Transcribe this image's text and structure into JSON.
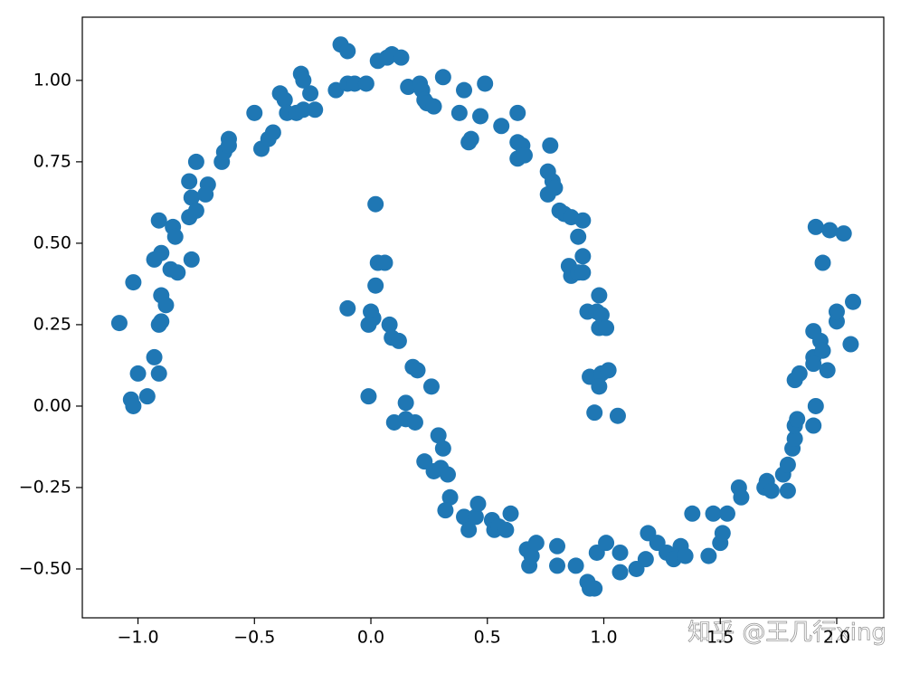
{
  "chart_data": {
    "type": "scatter",
    "color": "#1f77b4",
    "watermark": "知乎 @王几行xing",
    "xlim": [
      -1.239,
      2.202
    ],
    "ylim": [
      -0.65,
      1.194
    ],
    "xticks": [
      {
        "value": -1,
        "label": "−1.0"
      },
      {
        "value": -0.5,
        "label": "−0.5"
      },
      {
        "value": 0,
        "label": "0.0"
      },
      0.5,
      {
        "value": 1,
        "label": "1.0"
      },
      1.5,
      {
        "value": 2,
        "label": "2.0"
      }
    ],
    "yticks": [
      {
        "value": -0.5,
        "label": "−0.50"
      },
      {
        "value": -0.25,
        "label": "−0.25"
      },
      {
        "value": 0,
        "label": "0.00"
      },
      {
        "value": 0.25,
        "label": "0.25"
      },
      {
        "value": 0.5,
        "label": "0.50"
      },
      {
        "value": 0.75,
        "label": "0.75"
      },
      {
        "value": 1,
        "label": "1.00"
      }
    ],
    "x": [
      -1.08,
      -1.02,
      -1.0,
      -1.03,
      -1.02,
      -0.96,
      -0.93,
      -0.91,
      -0.91,
      -0.9,
      -0.9,
      -0.88,
      -0.93,
      -0.9,
      -0.91,
      -0.86,
      -0.83,
      -0.85,
      -0.84,
      -0.77,
      -0.78,
      -0.78,
      -0.77,
      -0.75,
      -0.75,
      -0.7,
      -0.71,
      -0.64,
      -0.63,
      -0.61,
      -0.61,
      -0.5,
      -0.47,
      -0.44,
      -0.42,
      -0.39,
      -0.37,
      -0.36,
      -0.3,
      -0.29,
      -0.32,
      -0.29,
      -0.24,
      -0.26,
      -0.15,
      -0.13,
      -0.1,
      -0.1,
      -0.07,
      -0.02,
      0.03,
      0.07,
      0.09,
      0.13,
      0.16,
      0.21,
      0.22,
      0.23,
      0.24,
      0.27,
      0.31,
      0.38,
      0.4,
      0.42,
      0.43,
      0.47,
      0.49,
      0.56,
      0.63,
      0.63,
      0.65,
      0.63,
      0.66,
      0.77,
      0.76,
      0.78,
      0.76,
      0.79,
      0.81,
      0.83,
      0.86,
      0.91,
      0.89,
      0.91,
      0.85,
      0.86,
      0.89,
      0.91,
      0.93,
      0.98,
      0.97,
      0.99,
      0.98,
      1.01,
      0.94,
      0.99,
      1.02,
      0.98,
      0.96,
      1.06,
      -0.1,
      -0.01,
      0.02,
      0.0,
      0.01,
      -0.01,
      0.03,
      0.02,
      0.06,
      0.08,
      0.09,
      0.12,
      0.1,
      0.15,
      0.15,
      0.19,
      0.18,
      0.2,
      0.26,
      0.23,
      0.27,
      0.3,
      0.29,
      0.31,
      0.33,
      0.34,
      0.32,
      0.4,
      0.42,
      0.45,
      0.46,
      0.52,
      0.53,
      0.55,
      0.58,
      0.6,
      0.67,
      0.68,
      0.69,
      0.71,
      0.8,
      0.8,
      0.88,
      0.93,
      0.94,
      0.96,
      0.97,
      1.01,
      1.07,
      1.07,
      1.14,
      1.19,
      1.18,
      1.23,
      1.27,
      1.3,
      1.33,
      1.35,
      1.38,
      1.45,
      1.47,
      1.5,
      1.51,
      1.53,
      1.58,
      1.59,
      1.69,
      1.7,
      1.72,
      1.77,
      1.79,
      1.79,
      1.81,
      1.82,
      1.82,
      1.83,
      1.82,
      1.84,
      1.9,
      1.91,
      1.9,
      1.9,
      1.93,
      1.94,
      1.9,
      1.96,
      2.0,
      2.0,
      2.06,
      2.07,
      1.91,
      1.97,
      2.03,
      1.94
    ],
    "y": [
      0.255,
      0.38,
      0.1,
      0.02,
      0.0,
      0.03,
      0.15,
      0.1,
      0.25,
      0.26,
      0.34,
      0.31,
      0.45,
      0.47,
      0.57,
      0.42,
      0.41,
      0.55,
      0.52,
      0.45,
      0.58,
      0.69,
      0.64,
      0.75,
      0.6,
      0.68,
      0.65,
      0.75,
      0.78,
      0.82,
      0.8,
      0.9,
      0.79,
      0.82,
      0.84,
      0.96,
      0.94,
      0.9,
      1.02,
      1.0,
      0.9,
      0.91,
      0.91,
      0.96,
      0.97,
      1.11,
      1.09,
      0.99,
      0.99,
      0.99,
      1.06,
      1.07,
      1.08,
      1.07,
      0.98,
      0.99,
      0.97,
      0.94,
      0.93,
      0.92,
      1.01,
      0.9,
      0.97,
      0.81,
      0.82,
      0.89,
      0.99,
      0.86,
      0.9,
      0.81,
      0.8,
      0.76,
      0.77,
      0.8,
      0.72,
      0.69,
      0.65,
      0.67,
      0.6,
      0.59,
      0.58,
      0.57,
      0.52,
      0.46,
      0.43,
      0.4,
      0.41,
      0.41,
      0.29,
      0.34,
      0.29,
      0.28,
      0.24,
      0.24,
      0.09,
      0.1,
      0.11,
      0.06,
      -0.02,
      -0.03,
      0.3,
      0.03,
      0.62,
      0.29,
      0.27,
      0.25,
      0.44,
      0.37,
      0.44,
      0.25,
      0.21,
      0.2,
      -0.05,
      0.01,
      -0.04,
      -0.05,
      0.12,
      0.11,
      0.06,
      -0.17,
      -0.2,
      -0.19,
      -0.09,
      -0.13,
      -0.21,
      -0.28,
      -0.32,
      -0.34,
      -0.38,
      -0.34,
      -0.3,
      -0.35,
      -0.38,
      -0.37,
      -0.38,
      -0.33,
      -0.44,
      -0.49,
      -0.46,
      -0.42,
      -0.43,
      -0.49,
      -0.49,
      -0.54,
      -0.56,
      -0.56,
      -0.45,
      -0.42,
      -0.45,
      -0.51,
      -0.5,
      -0.39,
      -0.47,
      -0.42,
      -0.45,
      -0.47,
      -0.43,
      -0.46,
      -0.33,
      -0.46,
      -0.33,
      -0.42,
      -0.39,
      -0.33,
      -0.25,
      -0.28,
      -0.25,
      -0.23,
      -0.26,
      -0.21,
      -0.26,
      -0.18,
      -0.13,
      -0.1,
      -0.06,
      -0.04,
      0.08,
      0.1,
      -0.06,
      0.0,
      0.15,
      0.23,
      0.2,
      0.17,
      0.13,
      0.11,
      0.26,
      0.29,
      0.19,
      0.32,
      0.55,
      0.54,
      0.53,
      0.44
    ]
  }
}
